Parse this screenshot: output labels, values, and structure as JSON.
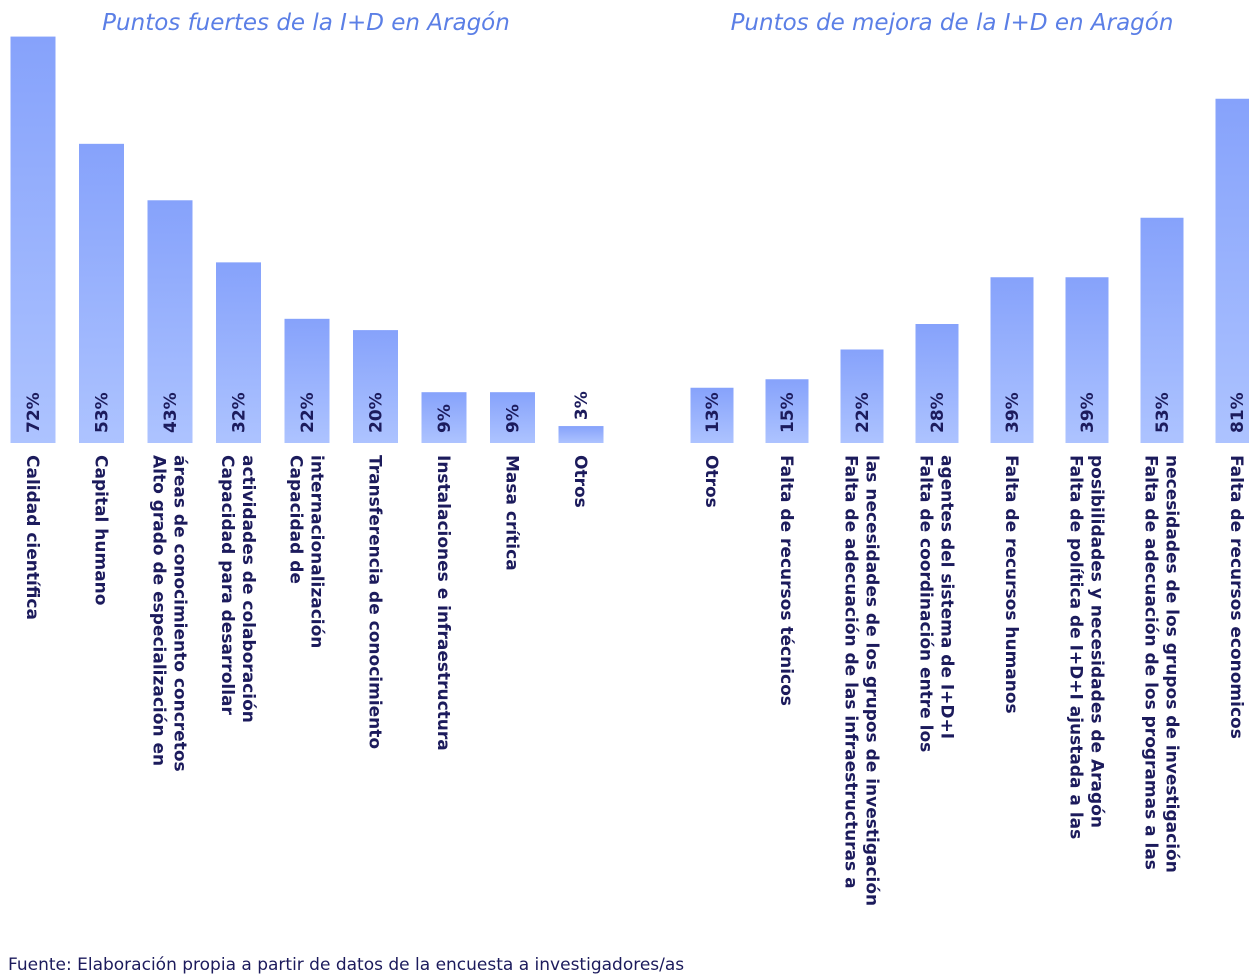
{
  "chart_data": [
    {
      "type": "bar",
      "title": "Puntos fuertes de la I+D en Aragón",
      "categories": [
        [
          "Calidad científica"
        ],
        [
          "Capital humano"
        ],
        [
          "Alto grado de especialización en",
          "áreas de conocimiento concretos"
        ],
        [
          "Capacidad para desarrollar",
          "actividades de colaboración"
        ],
        [
          "Capacidad de",
          "internacionalización"
        ],
        [
          "Transferencia de conocimiento"
        ],
        [
          "Instalaciones e infraestructura"
        ],
        [
          "Masa crítica"
        ],
        [
          "Otros"
        ]
      ],
      "values": [
        72,
        53,
        43,
        32,
        22,
        20,
        9,
        9,
        3
      ],
      "value_labels": [
        "72%",
        "53%",
        "43%",
        "32%",
        "22%",
        "20%",
        "9%",
        "9%",
        "3%"
      ],
      "color": "#93adfc",
      "ylim": [
        0,
        76
      ]
    },
    {
      "type": "bar",
      "title": "Puntos de mejora de la I+D en Aragón",
      "categories": [
        [
          "Otros"
        ],
        [
          "Falta de recursos técnicos"
        ],
        [
          "Falta de adecuación de las infraestructuras a",
          "las necesidades de los grupos de investigación"
        ],
        [
          "Falta de coordinación entre los",
          "agentes del sistema de I+D+I"
        ],
        [
          "Falta de recursos humanos"
        ],
        [
          "Falta de política de I+D+I ajustada a las",
          "posibilidades y necesidades de Aragón"
        ],
        [
          "Falta de adecuación de los programas a las",
          "necesidades de los grupos de investigación"
        ],
        [
          "Falta de recursos economicos"
        ]
      ],
      "values": [
        13,
        15,
        22,
        28,
        39,
        39,
        53,
        81
      ],
      "value_labels": [
        "13%",
        "15%",
        "22%",
        "28%",
        "39%",
        "39%",
        "53%",
        "81%"
      ],
      "color": "#93adfc",
      "ylim": [
        0,
        100
      ]
    }
  ],
  "source": "Fuente: Elaboración propia a partir de datos de la encuesta a investigadores/as"
}
